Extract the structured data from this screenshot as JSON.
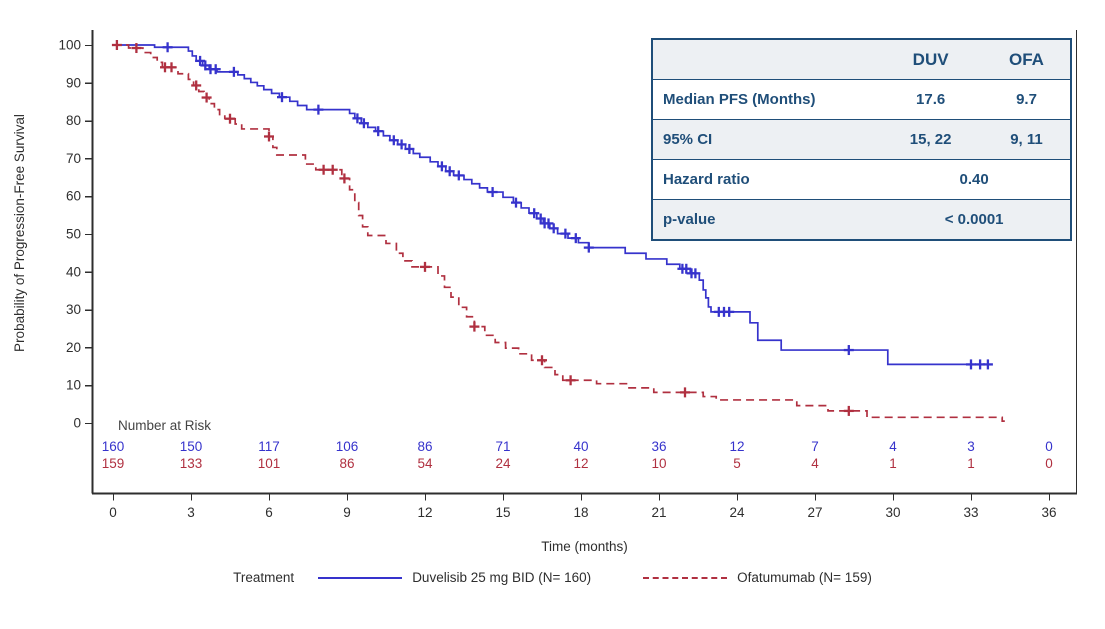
{
  "colors": {
    "duvelisib": "#3633cc",
    "ofatumumab": "#b03040",
    "axis": "#2e2e2e",
    "text": "#2e2e2e",
    "table_accent": "#1f4e79",
    "table_alt_row": "#edf0f3"
  },
  "axis_titles": {
    "x_label": "Time (months)",
    "y_label": "Probability of Progression-Free Survival"
  },
  "stats_table": {
    "header": {
      "duv": "DUV",
      "ofa": "OFA"
    },
    "rows": [
      {
        "label": "Median PFS (Months)",
        "duv": "17.6",
        "ofa": "9.7"
      },
      {
        "label": "95% CI",
        "duv": "15, 22",
        "ofa": "9, 11"
      },
      {
        "label": "Hazard ratio",
        "merged": "0.40"
      },
      {
        "label": "p-value",
        "merged": "< 0.0001"
      }
    ]
  },
  "chart_data": {
    "type": "line",
    "subtype": "kaplan-meier-step",
    "title": "",
    "xlabel": "Time (months)",
    "ylabel": "Probability of Progression-Free Survival",
    "xlim": [
      0,
      36
    ],
    "ylim": [
      0,
      100
    ],
    "xticks": [
      0,
      3,
      6,
      9,
      12,
      15,
      18,
      21,
      24,
      27,
      30,
      33,
      36
    ],
    "yticks": [
      0,
      10,
      20,
      30,
      40,
      50,
      60,
      70,
      80,
      90,
      100
    ],
    "grid": false,
    "legend": {
      "title": "Treatment",
      "position": "bottom"
    },
    "series": [
      {
        "name": "Duvelisib 25 mg BID (N= 160)",
        "short_name": "DUV",
        "color": "#3633cc",
        "dash": "solid",
        "median_pfs_months": 17.6,
        "ci_95": "15, 22",
        "end_time": 33.8,
        "steps": [
          [
            0,
            100
          ],
          [
            1.6,
            99.4
          ],
          [
            2.9,
            98.4
          ],
          [
            3.05,
            97.1
          ],
          [
            3.2,
            95.8
          ],
          [
            3.45,
            94.6
          ],
          [
            3.7,
            93.6
          ],
          [
            4.0,
            92.9
          ],
          [
            4.8,
            92.1
          ],
          [
            5.05,
            91.1
          ],
          [
            5.3,
            90.1
          ],
          [
            5.55,
            89.2
          ],
          [
            5.8,
            88.2
          ],
          [
            6.1,
            87.2
          ],
          [
            6.4,
            86.2
          ],
          [
            6.8,
            85.1
          ],
          [
            7.1,
            84.0
          ],
          [
            7.45,
            82.9
          ],
          [
            9.1,
            81.9
          ],
          [
            9.3,
            80.6
          ],
          [
            9.55,
            79.3
          ],
          [
            9.8,
            78.2
          ],
          [
            10.1,
            77.2
          ],
          [
            10.4,
            76.0
          ],
          [
            10.65,
            74.8
          ],
          [
            10.95,
            73.7
          ],
          [
            11.25,
            72.5
          ],
          [
            11.55,
            71.3
          ],
          [
            11.8,
            70.3
          ],
          [
            12.2,
            69.1
          ],
          [
            12.5,
            67.9
          ],
          [
            12.8,
            66.6
          ],
          [
            13.1,
            65.5
          ],
          [
            13.5,
            64.4
          ],
          [
            13.8,
            63.3
          ],
          [
            14.1,
            62.2
          ],
          [
            14.4,
            61.1
          ],
          [
            15.0,
            59.7
          ],
          [
            15.4,
            58.3
          ],
          [
            15.7,
            56.9
          ],
          [
            16.0,
            55.5
          ],
          [
            16.3,
            54.1
          ],
          [
            16.55,
            52.8
          ],
          [
            16.8,
            51.5
          ],
          [
            17.1,
            50.1
          ],
          [
            17.5,
            48.9
          ],
          [
            17.9,
            47.7
          ],
          [
            18.3,
            46.4
          ],
          [
            19.7,
            44.9
          ],
          [
            20.5,
            43.4
          ],
          [
            21.3,
            42.0
          ],
          [
            21.8,
            40.8
          ],
          [
            22.2,
            39.6
          ],
          [
            22.55,
            37.8
          ],
          [
            22.7,
            35.2
          ],
          [
            22.8,
            33.1
          ],
          [
            22.9,
            30.7
          ],
          [
            23.0,
            29.4
          ],
          [
            24.5,
            26.5
          ],
          [
            24.8,
            21.9
          ],
          [
            25.7,
            19.3
          ],
          [
            29.8,
            15.5
          ]
        ],
        "censor_times": [
          2.1,
          3.35,
          3.55,
          3.75,
          3.95,
          4.65,
          6.5,
          7.9,
          9.4,
          9.65,
          10.2,
          10.8,
          11.1,
          11.4,
          12.65,
          12.95,
          13.3,
          14.6,
          15.5,
          16.2,
          16.45,
          16.6,
          16.75,
          16.95,
          17.4,
          17.8,
          18.3,
          21.9,
          22.05,
          22.25,
          22.4,
          23.3,
          23.5,
          23.7,
          28.3,
          33.0,
          33.35,
          33.65
        ]
      },
      {
        "name": "Ofatumumab (N= 159)",
        "short_name": "OFA",
        "color": "#b03040",
        "dash": "dashed",
        "median_pfs_months": 9.7,
        "ci_95": "9, 11",
        "end_time": 34.3,
        "steps": [
          [
            0,
            100
          ],
          [
            0.6,
            99.2
          ],
          [
            1.15,
            98.0
          ],
          [
            1.45,
            96.7
          ],
          [
            1.7,
            95.4
          ],
          [
            1.9,
            94.1
          ],
          [
            2.5,
            92.4
          ],
          [
            2.9,
            90.9
          ],
          [
            3.1,
            89.3
          ],
          [
            3.3,
            87.7
          ],
          [
            3.5,
            86.1
          ],
          [
            3.7,
            84.5
          ],
          [
            3.9,
            82.9
          ],
          [
            4.1,
            81.6
          ],
          [
            4.3,
            80.5
          ],
          [
            4.7,
            79.1
          ],
          [
            4.95,
            77.8
          ],
          [
            6.0,
            75.8
          ],
          [
            6.15,
            72.9
          ],
          [
            6.3,
            70.9
          ],
          [
            7.4,
            68.5
          ],
          [
            7.8,
            67.0
          ],
          [
            8.8,
            64.7
          ],
          [
            9.1,
            61.7
          ],
          [
            9.3,
            58.3
          ],
          [
            9.45,
            54.9
          ],
          [
            9.6,
            51.9
          ],
          [
            9.8,
            49.6
          ],
          [
            10.5,
            47.5
          ],
          [
            10.9,
            44.9
          ],
          [
            11.15,
            42.9
          ],
          [
            11.5,
            41.3
          ],
          [
            12.5,
            38.9
          ],
          [
            12.75,
            35.9
          ],
          [
            13.0,
            33.3
          ],
          [
            13.3,
            30.6
          ],
          [
            13.6,
            28.1
          ],
          [
            13.9,
            25.5
          ],
          [
            14.3,
            23.2
          ],
          [
            14.7,
            21.3
          ],
          [
            15.1,
            19.8
          ],
          [
            15.6,
            18.3
          ],
          [
            16.1,
            16.6
          ],
          [
            16.6,
            14.7
          ],
          [
            17.0,
            12.8
          ],
          [
            17.3,
            11.3
          ],
          [
            18.6,
            10.4
          ],
          [
            19.8,
            9.3
          ],
          [
            20.8,
            8.1
          ],
          [
            22.7,
            7.0
          ],
          [
            23.2,
            6.1
          ],
          [
            26.3,
            4.6
          ],
          [
            27.5,
            3.2
          ],
          [
            29.0,
            1.5
          ],
          [
            34.2,
            0.5
          ]
        ],
        "censor_times": [
          0.15,
          0.9,
          2.0,
          2.25,
          3.2,
          3.6,
          4.5,
          6.0,
          8.1,
          8.45,
          8.9,
          12.0,
          13.9,
          16.5,
          17.6,
          22.0,
          28.3
        ]
      }
    ],
    "hazard_ratio": "0.40",
    "p_value": "< 0.0001",
    "number_at_risk": {
      "label": "Number at Risk",
      "times": [
        0,
        3,
        6,
        9,
        12,
        15,
        18,
        21,
        24,
        27,
        30,
        33,
        36
      ],
      "duvelisib": [
        160,
        150,
        117,
        106,
        86,
        71,
        40,
        36,
        12,
        7,
        4,
        3,
        0
      ],
      "ofatumumab": [
        159,
        133,
        101,
        86,
        54,
        24,
        12,
        10,
        5,
        4,
        1,
        1,
        0
      ]
    }
  }
}
